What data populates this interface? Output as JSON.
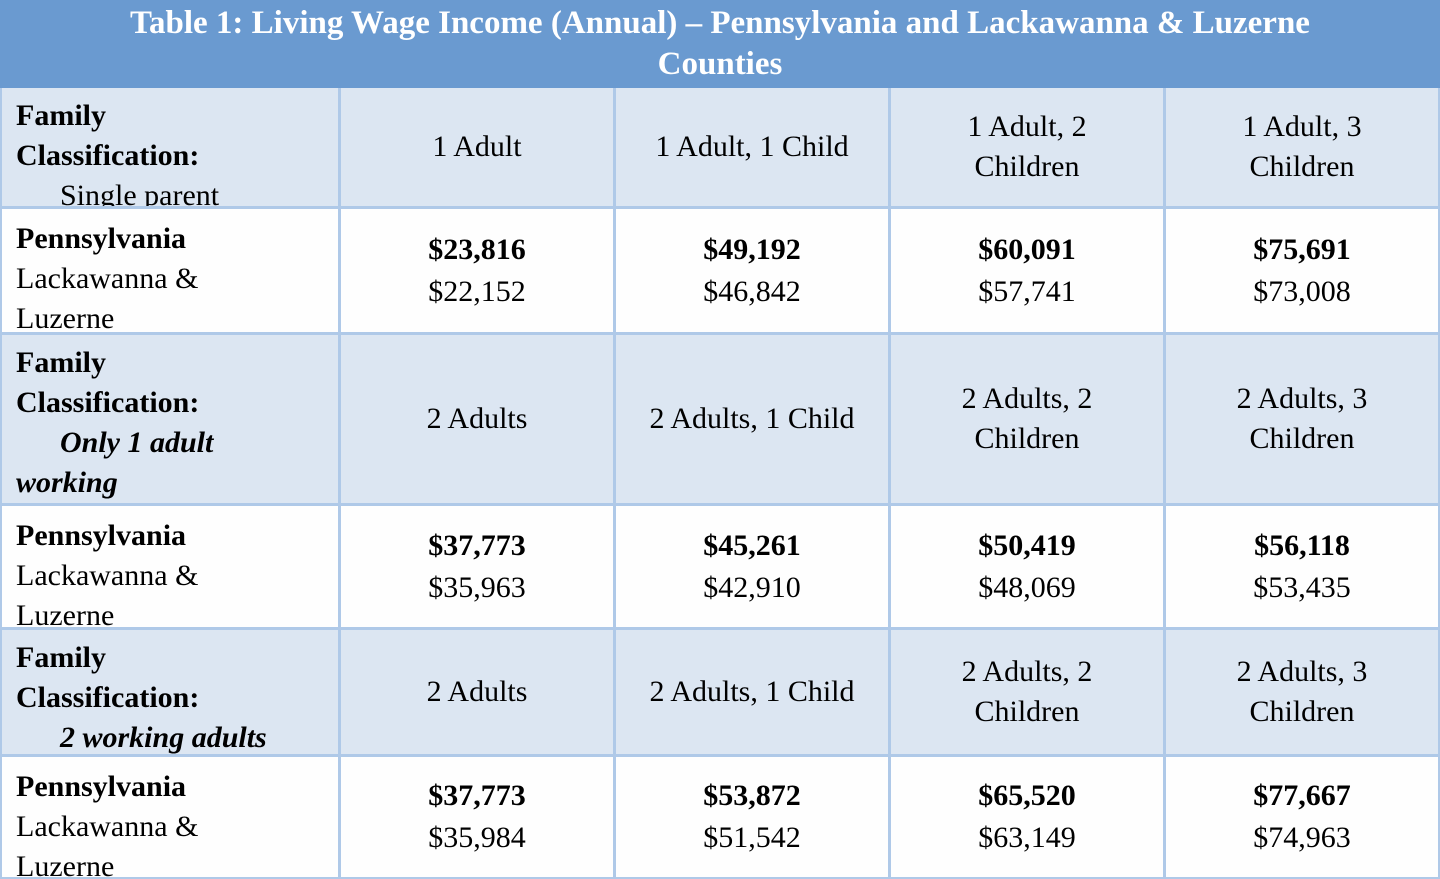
{
  "title": "Table 1: Living Wage Income (Annual) – Pennsylvania and Lackawanna & Luzerne Counties",
  "colors": {
    "header_bg": "#6A9AD0",
    "band_bg": "#DCE6F2",
    "white_bg": "#FEFEFE",
    "border": "#AFC9E8",
    "title_text": "#FFFFFF",
    "body_text": "#000000"
  },
  "row_label": {
    "state": "Pennsylvania",
    "counties": "Lackawanna & Luzerne"
  },
  "sections": [
    {
      "classification": {
        "prefix": "Family Classification:",
        "subtype": "Single parent",
        "subtype_style": "regular"
      },
      "columns": [
        "1 Adult",
        "1 Adult, 1 Child",
        "1 Adult, 2 Children",
        "1 Adult, 3 Children"
      ],
      "values": [
        {
          "state": "$23,816",
          "counties": "$22,152"
        },
        {
          "state": "$49,192",
          "counties": "$46,842"
        },
        {
          "state": "$60,091",
          "counties": "$57,741"
        },
        {
          "state": "$75,691",
          "counties": "$73,008"
        }
      ]
    },
    {
      "classification": {
        "prefix": "Family Classification:",
        "subtype": "Only 1 adult working",
        "subtype_style": "bold-italic"
      },
      "columns": [
        "2 Adults",
        "2 Adults, 1 Child",
        "2 Adults, 2 Children",
        "2 Adults, 3 Children"
      ],
      "values": [
        {
          "state": "$37,773",
          "counties": "$35,963"
        },
        {
          "state": "$45,261",
          "counties": "$42,910"
        },
        {
          "state": "$50,419",
          "counties": "$48,069"
        },
        {
          "state": "$56,118",
          "counties": "$53,435"
        }
      ]
    },
    {
      "classification": {
        "prefix": "Family Classification:",
        "subtype": "2 working adults",
        "subtype_style": "bold-italic"
      },
      "columns": [
        "2 Adults",
        "2 Adults, 1 Child",
        "2 Adults, 2 Children",
        "2 Adults, 3 Children"
      ],
      "values": [
        {
          "state": "$37,773",
          "counties": "$35,984"
        },
        {
          "state": "$53,872",
          "counties": "$51,542"
        },
        {
          "state": "$65,520",
          "counties": "$63,149"
        },
        {
          "state": "$77,667",
          "counties": "$74,963"
        }
      ]
    }
  ]
}
